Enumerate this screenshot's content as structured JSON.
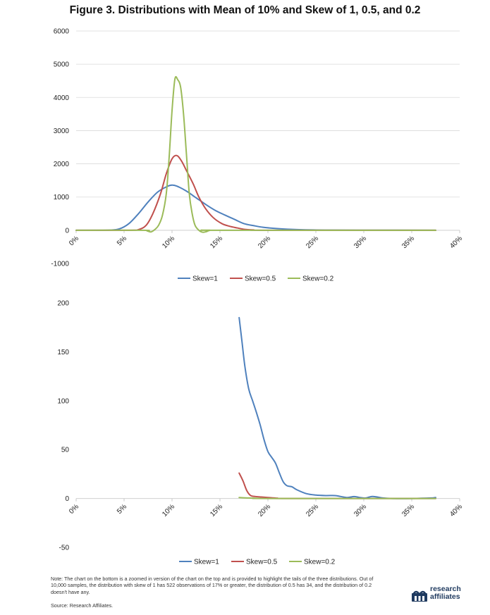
{
  "title": "Figure 3. Distributions with Mean of 10% and Skew of 1, 0.5, and 0.2",
  "colors": {
    "skew1": "#4f81bd",
    "skew05": "#c0504d",
    "skew02": "#9bbb59",
    "grid": "#d9d9d9",
    "logo": "#1f3a5f"
  },
  "chart_data": [
    {
      "type": "line",
      "x_ticks": [
        "0%",
        "5%",
        "10%",
        "15%",
        "20%",
        "25%",
        "30%",
        "35%",
        "40%"
      ],
      "xlim": [
        0,
        40
      ],
      "y_ticks": [
        "6000",
        "5000",
        "4000",
        "3000",
        "2000",
        "1000",
        "0",
        "-1000"
      ],
      "ylim": [
        -1000,
        6000
      ],
      "grid": true,
      "legend_position": "bottom",
      "series": [
        {
          "name": "Skew=1",
          "x": [
            0,
            2,
            3.5,
            4.5,
            5.5,
            6.5,
            7.5,
            8.5,
            9.5,
            10,
            10.5,
            11.5,
            12.5,
            13.5,
            14.5,
            15.5,
            16.5,
            17.5,
            18.5,
            19.5,
            21,
            23,
            26,
            30,
            37.5
          ],
          "y": [
            0,
            0,
            5,
            40,
            200,
            500,
            850,
            1150,
            1320,
            1360,
            1330,
            1180,
            980,
            780,
            600,
            460,
            330,
            200,
            140,
            90,
            50,
            20,
            5,
            2,
            0
          ]
        },
        {
          "name": "Skew=0.5",
          "x": [
            0,
            5.5,
            6.5,
            7.3,
            8,
            8.8,
            9.4,
            10,
            10.5,
            11,
            11.5,
            12.2,
            12.8,
            13.5,
            14.3,
            15.2,
            16,
            16.8,
            17.5,
            18.5,
            20,
            37.5
          ],
          "y": [
            0,
            0,
            20,
            150,
            500,
            1100,
            1700,
            2150,
            2250,
            2080,
            1800,
            1400,
            1000,
            650,
            380,
            200,
            120,
            70,
            30,
            10,
            0,
            0
          ]
        },
        {
          "name": "Skew=0.2",
          "x": [
            0,
            7,
            7.4,
            7.8,
            8.2,
            8.6,
            9,
            9.4,
            9.7,
            10,
            10.3,
            10.6,
            10.9,
            11.2,
            11.5,
            11.8,
            12.1,
            12.4,
            12.8,
            13.2,
            13.6,
            14,
            15,
            37.5
          ],
          "y": [
            0,
            0,
            -20,
            -50,
            20,
            150,
            450,
            1100,
            2200,
            3600,
            4550,
            4530,
            4300,
            3500,
            2300,
            1100,
            500,
            150,
            0,
            -60,
            -40,
            0,
            0,
            0
          ]
        }
      ]
    },
    {
      "type": "line",
      "x_ticks": [
        "0%",
        "5%",
        "10%",
        "15%",
        "20%",
        "25%",
        "30%",
        "35%",
        "40%"
      ],
      "xlim": [
        0,
        40
      ],
      "y_ticks": [
        "200",
        "150",
        "100",
        "50",
        "0",
        "-50"
      ],
      "ylim": [
        -50,
        200
      ],
      "grid": false,
      "legend_position": "bottom",
      "series": [
        {
          "name": "Skew=1",
          "x": [
            17,
            17.3,
            17.6,
            18,
            18.4,
            18.8,
            19.2,
            19.6,
            20,
            20.4,
            20.8,
            21.2,
            21.6,
            22,
            22.5,
            23,
            24,
            25,
            26,
            27,
            27.6,
            28.3,
            29,
            29.6,
            30.2,
            30.8,
            31.4,
            32,
            33,
            35,
            37,
            37.5
          ],
          "y": [
            185,
            160,
            135,
            112,
            100,
            88,
            75,
            60,
            48,
            42,
            36,
            26,
            17,
            13,
            12,
            9,
            5,
            3.5,
            3,
            3,
            2,
            1,
            2,
            1,
            0.5,
            2,
            1.5,
            0.5,
            0,
            0,
            0.5,
            1
          ]
        },
        {
          "name": "Skew=0.5",
          "x": [
            17,
            17.4,
            17.8,
            18.2,
            18.7,
            19.3,
            20,
            21,
            22,
            37.5
          ],
          "y": [
            26,
            18,
            8,
            3,
            2,
            1.5,
            1,
            0.3,
            0,
            0
          ]
        },
        {
          "name": "Skew=0.2",
          "x": [
            17,
            18,
            19,
            20,
            37.5
          ],
          "y": [
            1,
            0.5,
            0.2,
            0,
            0
          ]
        }
      ]
    }
  ],
  "legend": [
    "Skew=1",
    "Skew=0.5",
    "Skew=0.2"
  ],
  "note": "Note: The chart on the bottom is a zoomed in version of the chart on the top and is provided to highlight the tails of the three distributions. Out of 10,000 samples, the distribution with skew of 1 has 522 observations of 17% or greater, the distribution of 0.5 has 34, and the distribution of 0.2 doesn't have any.",
  "source": "Source: Research Affiliates.",
  "logo": {
    "line1": "research",
    "line2": "affiliates",
    "icon": "research-affiliates-logo-mark"
  }
}
